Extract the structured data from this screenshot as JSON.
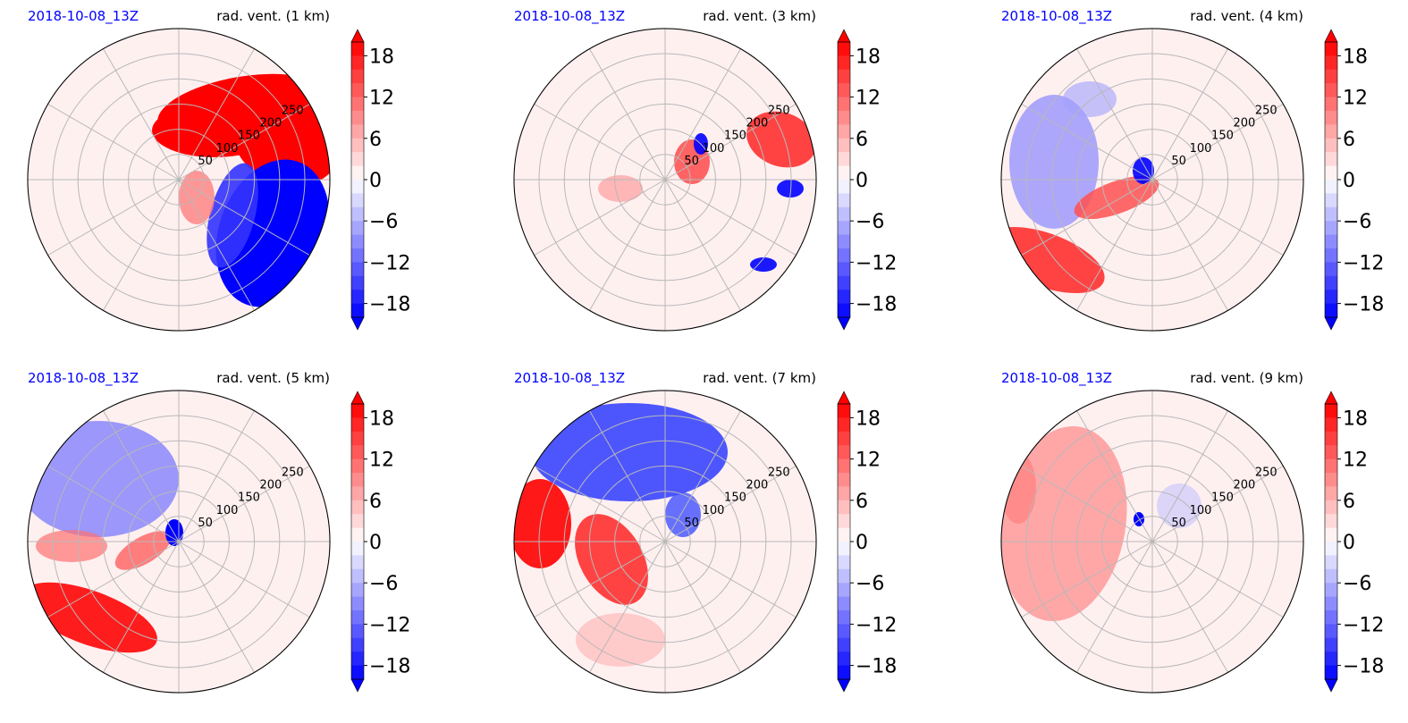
{
  "chart_data": [
    {
      "type": "heatmap",
      "date": "2018-10-08_13Z",
      "title": "rad. vent. (1 km)",
      "ring_labels": [
        "50",
        "100",
        "150",
        "200",
        "250"
      ],
      "colorbar": {
        "ticks": [
          "18",
          "12",
          "6",
          "0",
          "−6",
          "−12",
          "−18"
        ],
        "min": -20,
        "max": 20,
        "extend": "both",
        "low_color": "#0000ff",
        "mid_color": "#ffffff",
        "high_color": "#ff0000"
      }
    },
    {
      "type": "heatmap",
      "date": "2018-10-08_13Z",
      "title": "rad. vent. (3 km)",
      "ring_labels": [
        "50",
        "100",
        "150",
        "200",
        "250"
      ],
      "colorbar": {
        "ticks": [
          "18",
          "12",
          "6",
          "0",
          "−6",
          "−12",
          "−18"
        ],
        "min": -20,
        "max": 20,
        "extend": "both",
        "low_color": "#0000ff",
        "mid_color": "#ffffff",
        "high_color": "#ff0000"
      }
    },
    {
      "type": "heatmap",
      "date": "2018-10-08_13Z",
      "title": "rad. vent. (4 km)",
      "ring_labels": [
        "50",
        "100",
        "150",
        "200",
        "250"
      ],
      "colorbar": {
        "ticks": [
          "18",
          "12",
          "6",
          "0",
          "−6",
          "−12",
          "−18"
        ],
        "min": -20,
        "max": 20,
        "extend": "both",
        "low_color": "#0000ff",
        "mid_color": "#ffffff",
        "high_color": "#ff0000"
      }
    },
    {
      "type": "heatmap",
      "date": "2018-10-08_13Z",
      "title": "rad. vent. (5 km)",
      "ring_labels": [
        "50",
        "100",
        "150",
        "200",
        "250"
      ],
      "colorbar": {
        "ticks": [
          "18",
          "12",
          "6",
          "0",
          "−6",
          "−12",
          "−18"
        ],
        "min": -20,
        "max": 20,
        "extend": "both",
        "low_color": "#0000ff",
        "mid_color": "#ffffff",
        "high_color": "#ff0000"
      }
    },
    {
      "type": "heatmap",
      "date": "2018-10-08_13Z",
      "title": "rad. vent. (7 km)",
      "ring_labels": [
        "50",
        "100",
        "150",
        "200",
        "250"
      ],
      "colorbar": {
        "ticks": [
          "18",
          "12",
          "6",
          "0",
          "−6",
          "−12",
          "−18"
        ],
        "min": -20,
        "max": 20,
        "extend": "both",
        "low_color": "#0000ff",
        "mid_color": "#ffffff",
        "high_color": "#ff0000"
      }
    },
    {
      "type": "heatmap",
      "date": "2018-10-08_13Z",
      "title": "rad. vent. (9 km)",
      "ring_labels": [
        "50",
        "100",
        "150",
        "200",
        "250"
      ],
      "colorbar": {
        "ticks": [
          "18",
          "12",
          "6",
          "0",
          "−6",
          "−12",
          "−18"
        ],
        "min": -20,
        "max": 20,
        "extend": "both",
        "low_color": "#0000ff",
        "mid_color": "#ffffff",
        "high_color": "#ff0000"
      }
    }
  ]
}
